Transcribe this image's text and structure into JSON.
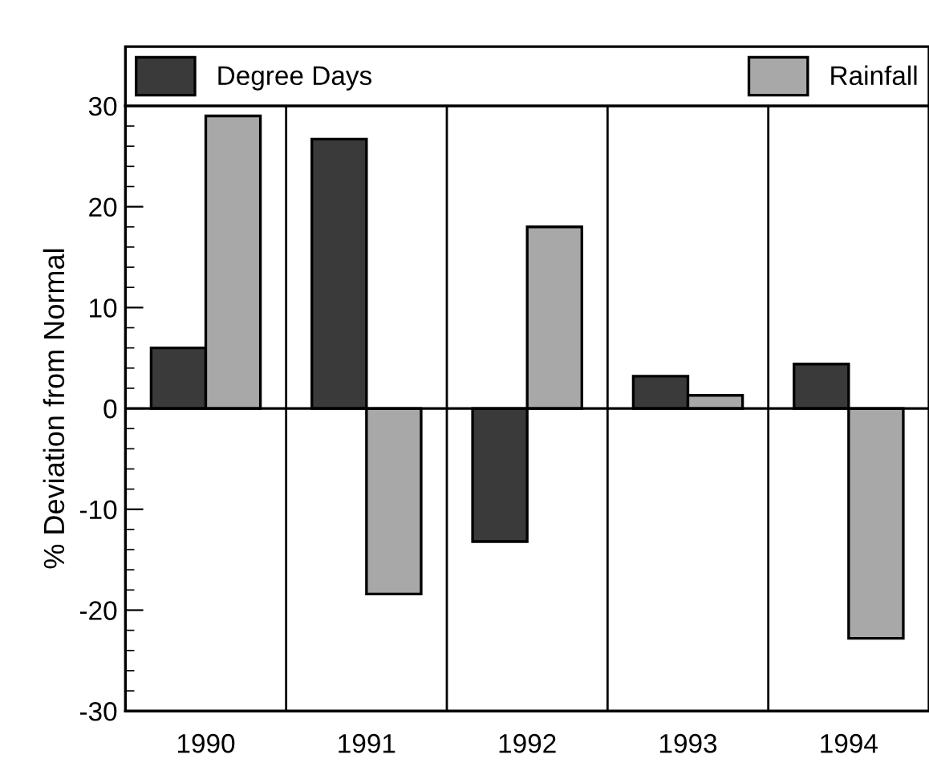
{
  "chart_data": {
    "type": "bar",
    "categories": [
      "1990",
      "1991",
      "1992",
      "1993",
      "1994"
    ],
    "series": [
      {
        "name": "Degree Days",
        "color": "#3a3a3a",
        "values": [
          6.0,
          26.7,
          -13.2,
          3.2,
          4.4
        ]
      },
      {
        "name": "Rainfall",
        "color": "#a8a8a8",
        "values": [
          29.0,
          -18.4,
          18.0,
          1.3,
          -22.8
        ]
      }
    ],
    "ylabel": "% Deviation from Normal",
    "ylim": [
      -30,
      30
    ],
    "yticks": [
      -30,
      -20,
      -10,
      0,
      10,
      20,
      30
    ],
    "ref_lines": [
      {
        "axis": "y",
        "value": 0
      }
    ],
    "grid": "x",
    "legend": "top"
  }
}
